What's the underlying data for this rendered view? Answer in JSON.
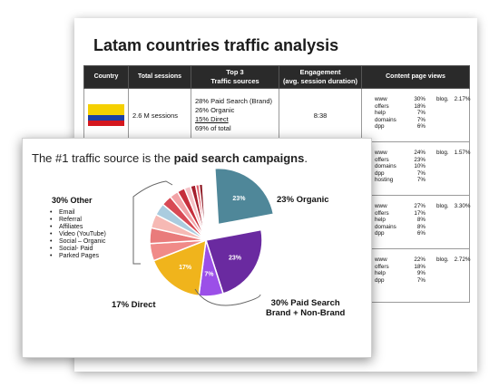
{
  "document": {
    "title": "Latam countries traffic analysis",
    "table": {
      "headers": {
        "country": "Country",
        "total_sessions": "Total sessions",
        "top3_line1": "Top 3",
        "top3_line2": "Traffic sources",
        "engagement_line1": "Engagement",
        "engagement_line2": "(avg. session duration)",
        "content_views": "Content page views"
      },
      "row1": {
        "sessions": "2.6 M sessions",
        "sources": [
          "28% Paid Search (Brand)",
          "26% Organic",
          "15% Direct",
          "69% of total"
        ],
        "engagement": "8:38",
        "page_views": [
          {
            "label": "www",
            "value": "30%"
          },
          {
            "label": "offers",
            "value": "18%"
          },
          {
            "label": "help",
            "value": "7%"
          },
          {
            "label": "domains",
            "value": "7%"
          },
          {
            "label": "dpp",
            "value": "6%"
          }
        ],
        "blog_label": "blog.",
        "blog_value": "2.17%"
      },
      "row2": {
        "page_views": [
          {
            "label": "www",
            "value": "24%"
          },
          {
            "label": "offers",
            "value": "23%"
          },
          {
            "label": "domains",
            "value": "10%"
          },
          {
            "label": "dpp",
            "value": "7%"
          },
          {
            "label": "hosting",
            "value": "7%"
          }
        ],
        "blog_label": "blog.",
        "blog_value": "1.57%"
      },
      "row3": {
        "page_views": [
          {
            "label": "www",
            "value": "27%"
          },
          {
            "label": "offers",
            "value": "17%"
          },
          {
            "label": "help",
            "value": "8%"
          },
          {
            "label": "domains",
            "value": "8%"
          },
          {
            "label": "dpp",
            "value": "6%"
          }
        ],
        "blog_label": "blog.",
        "blog_value": "3.30%"
      },
      "row4": {
        "page_views": [
          {
            "label": "www",
            "value": "22%"
          },
          {
            "label": "offers",
            "value": "18%"
          },
          {
            "label": "help",
            "value": "9%"
          },
          {
            "label": "dpp",
            "value": "7%"
          }
        ],
        "blog_label": "blog.",
        "blog_value": "2.72%"
      }
    }
  },
  "slide": {
    "headline_prefix": "The #1 traffic source is the ",
    "headline_bold": "paid search campaigns",
    "headline_suffix": ".",
    "other_title": "30% Other",
    "other_items": [
      "Email",
      "Referral",
      "Affiliates",
      "Video (YouTube)",
      "Social – Organic",
      "Social- Paid",
      "Parked Pages"
    ],
    "callout_organic": "23% Organic",
    "callout_direct": "17% Direct",
    "callout_paid_line1": "30% Paid Search",
    "callout_paid_line2": "Brand + Non-Brand"
  },
  "chart_data": {
    "type": "pie",
    "title": "",
    "slices": [
      {
        "value": 23,
        "label": "23%",
        "color": "#4f8799",
        "exploded": true
      },
      {
        "value": 23,
        "label": "23%",
        "color": "#6a2aa0",
        "exploded": false
      },
      {
        "value": 7,
        "label": "7%",
        "color": "#9b4fe8",
        "exploded": false
      },
      {
        "value": 17,
        "label": "17%",
        "color": "#f0b41c",
        "exploded": false
      },
      {
        "value": 5,
        "label": "",
        "color": "#f08a88",
        "exploded": false
      },
      {
        "value": 4.5,
        "label": "",
        "color": "#e97b7b",
        "exploded": false
      },
      {
        "value": 4,
        "label": "",
        "color": "#f6b9b4",
        "exploded": false
      },
      {
        "value": 3.5,
        "label": "",
        "color": "#aaccdf",
        "exploded": false
      },
      {
        "value": 3,
        "label": "",
        "color": "#d84a55",
        "exploded": false
      },
      {
        "value": 2.5,
        "label": "",
        "color": "#f2a2a6",
        "exploded": false
      },
      {
        "value": 2.2,
        "label": "",
        "color": "#c62f3c",
        "exploded": false
      },
      {
        "value": 1.8,
        "label": "",
        "color": "#f4c1c6",
        "exploded": false
      },
      {
        "value": 1.5,
        "label": "",
        "color": "#a51f2d",
        "exploded": false
      },
      {
        "value": 1,
        "label": "",
        "color": "#e1636f",
        "exploded": false
      },
      {
        "value": 1,
        "label": "",
        "color": "#8f1a25",
        "exploded": false
      }
    ]
  }
}
